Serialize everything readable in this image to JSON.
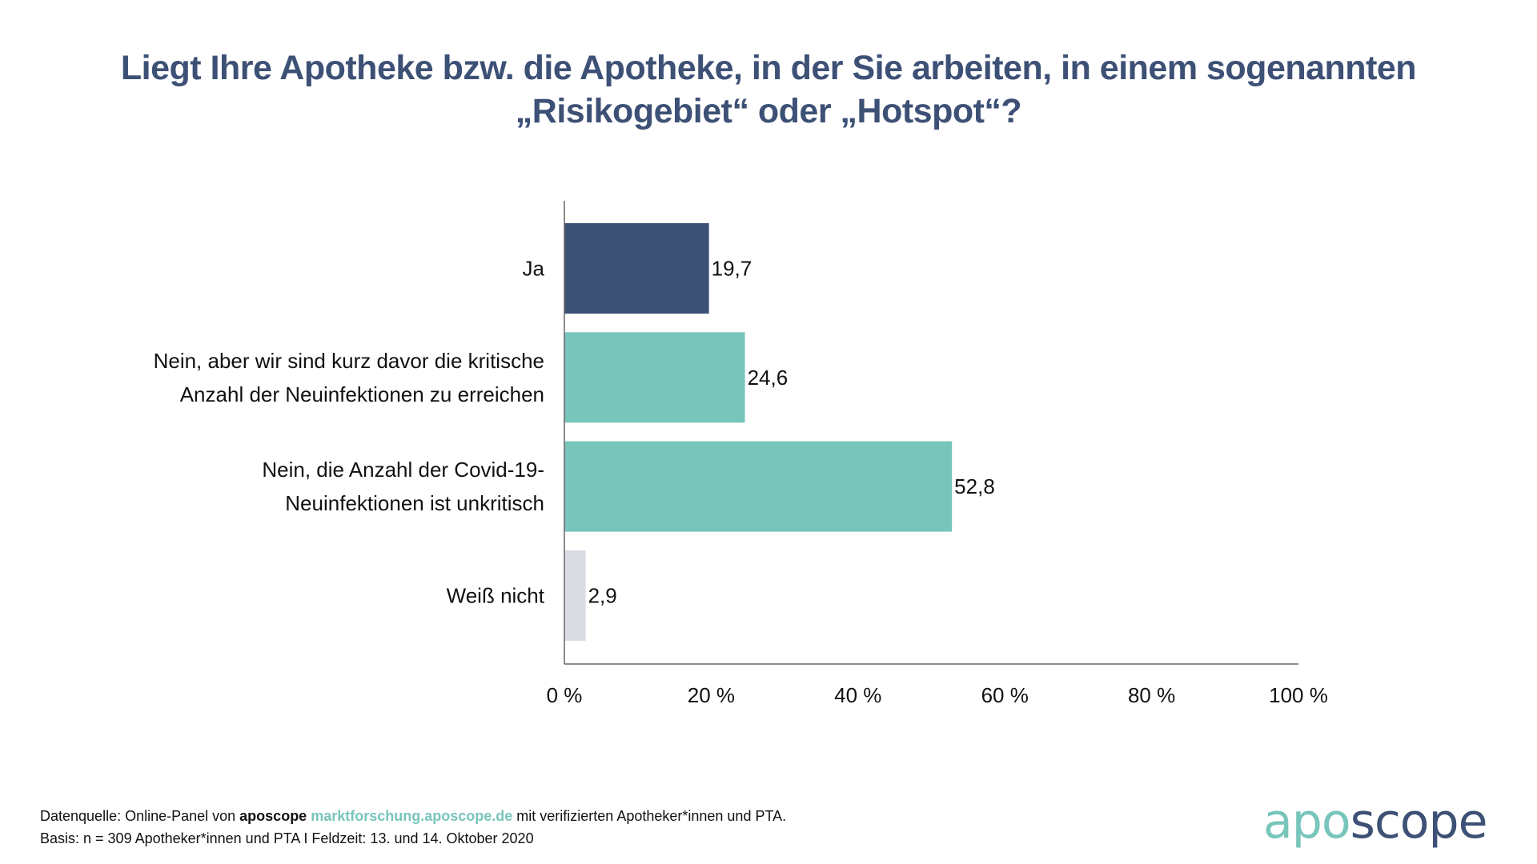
{
  "title": {
    "line1": "Liegt Ihre Apotheke bzw. die Apotheke, in der Sie arbeiten, in einem sogenannten",
    "line2": "„Risikogebiet“ oder „Hotspot“?"
  },
  "colors": {
    "title": "#3d5075",
    "bar_ja": "#3d5075",
    "bar_nein": "#78c5bb",
    "bar_weiss_nicht": "#d9dce3",
    "axis": "#666666",
    "link": "#78c5bb"
  },
  "chart_data": {
    "type": "bar",
    "orientation": "horizontal",
    "title": "Liegt Ihre Apotheke bzw. die Apotheke, in der Sie arbeiten, in einem sogenannten „Risikogebiet“ oder „Hotspot“?",
    "categories": [
      [
        "Ja"
      ],
      [
        "Nein, aber wir sind kurz davor die kritische",
        "Anzahl der Neuinfektionen zu erreichen"
      ],
      [
        "Nein, die Anzahl der Covid-19-",
        "Neuinfektionen ist unkritisch"
      ],
      [
        "Weiß nicht"
      ]
    ],
    "values": [
      19.7,
      24.6,
      52.8,
      2.9
    ],
    "value_labels": [
      "19,7",
      "24,6",
      "52,8",
      "2,9"
    ],
    "bar_colors": [
      "#3d5075",
      "#78c5bb",
      "#78c5bb",
      "#d9dce3"
    ],
    "xlabel": "",
    "ylabel": "",
    "xlim": [
      0,
      100
    ],
    "xticks": [
      0,
      20,
      40,
      60,
      80,
      100
    ],
    "xtick_labels": [
      "0 %",
      "20 %",
      "40 %",
      "60 %",
      "80 %",
      "100 %"
    ],
    "grid": false,
    "legend": "none"
  },
  "footer": {
    "line1_prefix": "Datenquelle: Online-Panel von ",
    "line1_brand": "aposcope",
    "line1_link": "marktforschung.aposcope.de",
    "line1_suffix": " mit verifizierten Apotheker*innen und PTA.",
    "line2": "Basis: n = 309 Apotheker*innen und PTA I Feldzeit: 13. und 14. Oktober 2020"
  },
  "logo": {
    "part1": "apo",
    "part2": "scope"
  }
}
